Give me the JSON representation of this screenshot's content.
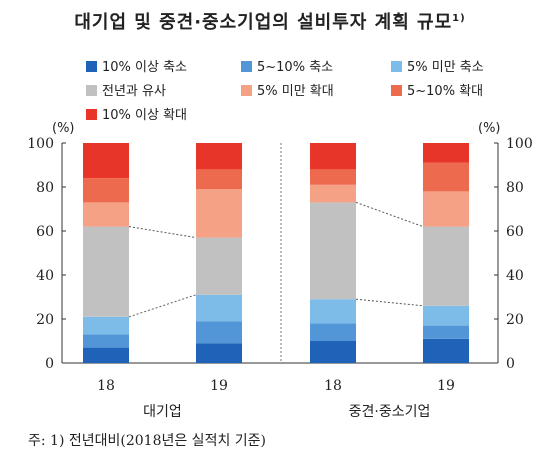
{
  "title": "대기업 및 중견·중소기업의 설비투자 계획 규모",
  "title_sup": "1)",
  "colors": {
    "dec_10_plus": "#1f63b8",
    "dec_5_10": "#5296d8",
    "dec_under_5": "#7dbce9",
    "similar": "#c1c1c1",
    "inc_under_5": "#f4a185",
    "inc_5_10": "#ee6a4f",
    "inc_10_plus": "#e8352a"
  },
  "note": "주:  1)  전년대비(2018년은  실적치  기준)",
  "chart_data": {
    "type": "bar",
    "stacked": true,
    "title": "대기업 및 중견·중소기업의 설비투자 계획 규모",
    "ylabel_left": "(%)",
    "ylabel_right": "(%)",
    "ylim": [
      0,
      100
    ],
    "yticks": [
      0,
      20,
      40,
      60,
      80,
      100
    ],
    "categories": [
      "18",
      "19",
      "18",
      "19"
    ],
    "groups": [
      {
        "label": "대기업",
        "categories": [
          0,
          1
        ]
      },
      {
        "label": "중견·중소기업",
        "categories": [
          2,
          3
        ]
      }
    ],
    "legend": "top",
    "series": [
      {
        "name": "10% 이상 축소",
        "color": "#1f63b8",
        "values": [
          7,
          9,
          10,
          11
        ]
      },
      {
        "name": "5~10% 축소",
        "color": "#5296d8",
        "values": [
          6,
          10,
          8,
          6
        ]
      },
      {
        "name": "5% 미만 축소",
        "color": "#7dbce9",
        "values": [
          8,
          12,
          11,
          9
        ]
      },
      {
        "name": "전년과 유사",
        "color": "#c1c1c1",
        "values": [
          41,
          26,
          44,
          36
        ]
      },
      {
        "name": "5% 미만 확대",
        "color": "#f4a185",
        "values": [
          11,
          22,
          8,
          16
        ]
      },
      {
        "name": "5~10% 확대",
        "color": "#ee6a4f",
        "values": [
          11,
          9,
          7,
          13
        ]
      },
      {
        "name": "10% 이상 확대",
        "color": "#e8352a",
        "values": [
          16,
          12,
          12,
          9
        ]
      }
    ]
  }
}
